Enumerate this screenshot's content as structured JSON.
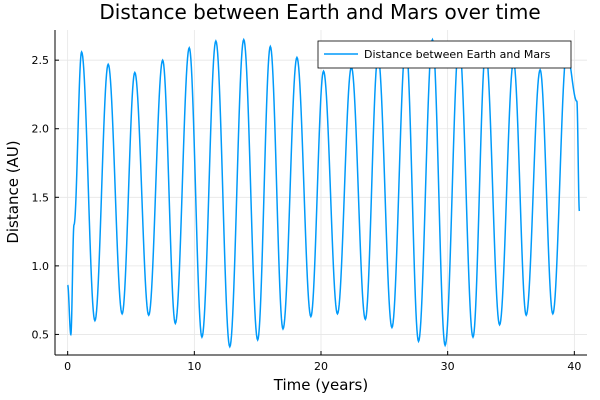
{
  "chart_data": {
    "type": "line",
    "title": "Distance between Earth and Mars over time",
    "xlabel": "Time (years)",
    "ylabel": "Distance (AU)",
    "xlim": [
      -1,
      41
    ],
    "ylim": [
      0.35,
      2.72
    ],
    "x_ticks": [
      0,
      10,
      20,
      30,
      40
    ],
    "y_ticks": [
      0.5,
      1.0,
      1.5,
      2.0,
      2.5
    ],
    "y_tick_labels": [
      "0.5",
      "1.0",
      "1.5",
      "2.0",
      "2.5"
    ],
    "grid": true,
    "legend_position": "top-right",
    "series": [
      {
        "name": "Distance between Earth and Mars",
        "color": "#009AFA",
        "x": [
          0.0,
          0.25,
          0.5,
          1.1,
          2.15,
          3.2,
          4.3,
          5.3,
          6.4,
          7.5,
          8.5,
          9.6,
          10.6,
          11.7,
          12.8,
          13.9,
          15.0,
          16.0,
          17.0,
          18.1,
          19.2,
          20.2,
          21.3,
          22.4,
          23.5,
          24.5,
          25.6,
          26.7,
          27.7,
          28.8,
          29.8,
          30.9,
          32.0,
          33.0,
          34.1,
          35.2,
          36.2,
          37.3,
          38.3,
          39.4,
          40.2,
          40.4
        ],
        "y": [
          0.86,
          0.5,
          1.3,
          2.56,
          0.6,
          2.47,
          0.65,
          2.41,
          0.64,
          2.5,
          0.58,
          2.59,
          0.48,
          2.64,
          0.41,
          2.65,
          0.46,
          2.6,
          0.54,
          2.52,
          0.63,
          2.42,
          0.65,
          2.45,
          0.61,
          2.53,
          0.55,
          2.62,
          0.45,
          2.65,
          0.42,
          2.63,
          0.48,
          2.57,
          0.57,
          2.49,
          0.64,
          2.43,
          0.65,
          2.56,
          2.2,
          1.4
        ]
      }
    ]
  }
}
